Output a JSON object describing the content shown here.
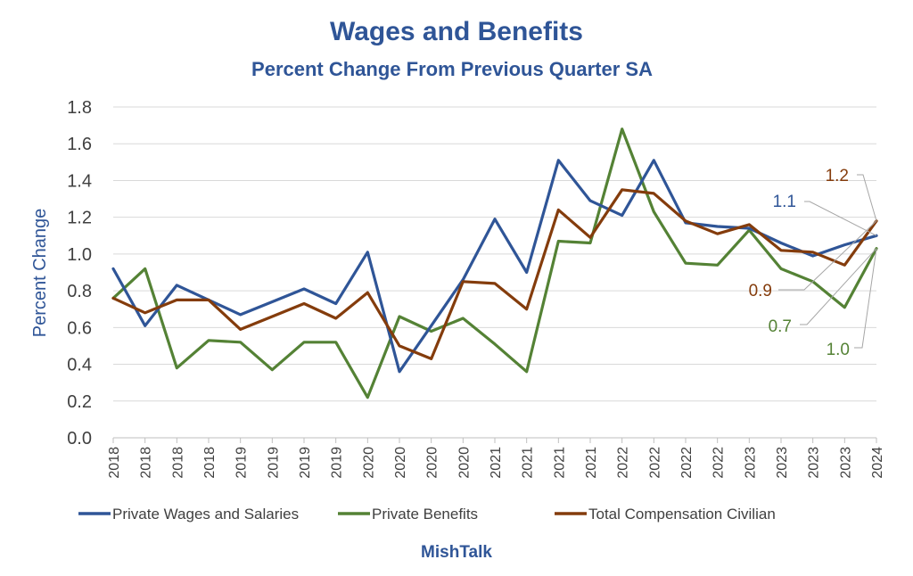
{
  "chart_data": {
    "type": "line",
    "title": "Wages and Benefits",
    "subtitle": "Percent Change From Previous Quarter SA",
    "ylabel": "Percent Change",
    "xlabel": "",
    "ylim": [
      0,
      1.8
    ],
    "ytick_step": 0.2,
    "yticks": [
      "0.0",
      "0.2",
      "0.4",
      "0.6",
      "0.8",
      "1.0",
      "1.2",
      "1.4",
      "1.6",
      "1.8"
    ],
    "grid": "horizontal",
    "legend_position": "bottom",
    "categories": [
      "2018",
      "2018",
      "2018",
      "2018",
      "2019",
      "2019",
      "2019",
      "2019",
      "2020",
      "2020",
      "2020",
      "2020",
      "2021",
      "2021",
      "2021",
      "2021",
      "2022",
      "2022",
      "2022",
      "2022",
      "2023",
      "2023",
      "2023",
      "2023",
      "2024"
    ],
    "series": [
      {
        "name": "Private Wages and Salaries",
        "color": "#2f5597",
        "values": [
          0.92,
          0.61,
          0.83,
          0.75,
          0.67,
          0.74,
          0.81,
          0.73,
          1.01,
          0.36,
          0.61,
          0.86,
          1.19,
          0.9,
          1.51,
          1.29,
          1.21,
          1.51,
          1.17,
          1.15,
          1.14,
          1.06,
          0.99,
          1.05,
          1.1
        ]
      },
      {
        "name": "Private Benefits",
        "color": "#548235",
        "values": [
          0.76,
          0.92,
          0.38,
          0.53,
          0.52,
          0.37,
          0.52,
          0.52,
          0.22,
          0.66,
          0.58,
          0.65,
          0.51,
          0.36,
          1.07,
          1.06,
          1.68,
          1.23,
          0.95,
          0.94,
          1.13,
          0.92,
          0.85,
          0.71,
          1.03
        ]
      },
      {
        "name": "Total Compensation Civilian",
        "color": "#843c0c",
        "values": [
          0.76,
          0.68,
          0.75,
          0.75,
          0.59,
          0.66,
          0.73,
          0.65,
          0.79,
          0.5,
          0.43,
          0.85,
          0.84,
          0.7,
          1.24,
          1.09,
          1.35,
          1.33,
          1.18,
          1.11,
          1.16,
          1.02,
          1.01,
          0.94,
          1.18
        ]
      }
    ],
    "annotations": [
      {
        "text": "1.2",
        "series": "Total Compensation Civilian",
        "color": "#843c0c"
      },
      {
        "text": "1.1",
        "series": "Private Wages and Salaries",
        "color": "#2f5597"
      },
      {
        "text": "0.9",
        "series": "Total Compensation Civilian",
        "color": "#843c0c"
      },
      {
        "text": "0.7",
        "series": "Private Benefits",
        "color": "#548235"
      },
      {
        "text": "1.0",
        "series": "Private Benefits",
        "color": "#548235"
      }
    ],
    "source": "MishTalk"
  }
}
